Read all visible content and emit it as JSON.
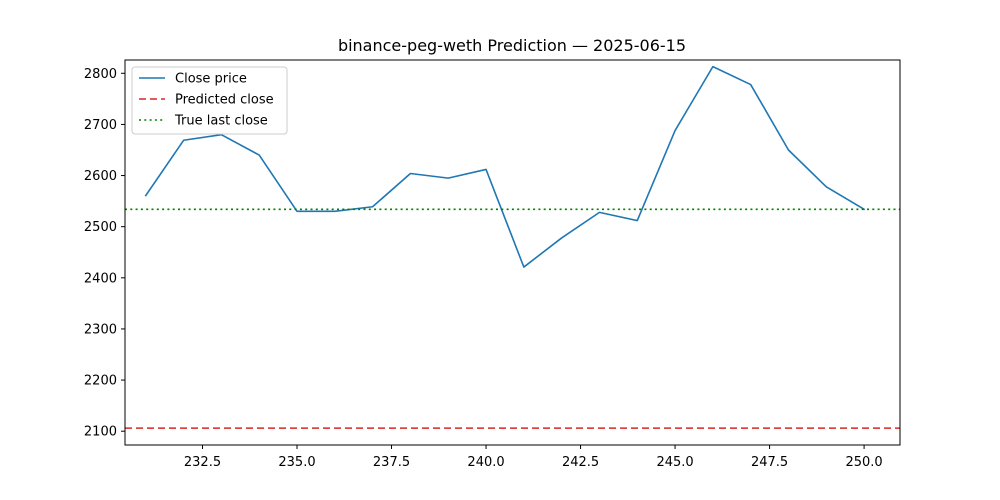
{
  "chart_data": {
    "type": "line",
    "title": "binance-peg-weth Prediction — 2025-06-15",
    "xlabel": "",
    "ylabel": "",
    "xlim": [
      230.45,
      250.95
    ],
    "ylim": [
      2073,
      2826
    ],
    "x_ticks": [
      232.5,
      235.0,
      237.5,
      240.0,
      242.5,
      245.0,
      247.5,
      250.0
    ],
    "x_tick_labels": [
      "232.5",
      "235.0",
      "237.5",
      "240.0",
      "242.5",
      "245.0",
      "247.5",
      "250.0"
    ],
    "y_ticks": [
      2100,
      2200,
      2300,
      2400,
      2500,
      2600,
      2700,
      2800
    ],
    "y_tick_labels": [
      "2100",
      "2200",
      "2300",
      "2400",
      "2500",
      "2600",
      "2700",
      "2800"
    ],
    "grid": false,
    "legend_position": "top-left",
    "series": [
      {
        "name": "Close price",
        "style": "solid",
        "color": "#1f77b4",
        "x": [
          231,
          232,
          233,
          234,
          235,
          236,
          237,
          238,
          239,
          240,
          241,
          242,
          243,
          244,
          245,
          246,
          247,
          248,
          249,
          250
        ],
        "y": [
          2561,
          2669,
          2680,
          2640,
          2530,
          2530,
          2539,
          2604,
          2595,
          2612,
          2421,
          2478,
          2528,
          2512,
          2688,
          2813,
          2778,
          2650,
          2578,
          2534
        ]
      },
      {
        "name": "Predicted close",
        "style": "dashed",
        "color": "#d62728",
        "y_const": 2106
      },
      {
        "name": "True last close",
        "style": "dotted",
        "color": "#008000",
        "y_const": 2534
      }
    ]
  }
}
